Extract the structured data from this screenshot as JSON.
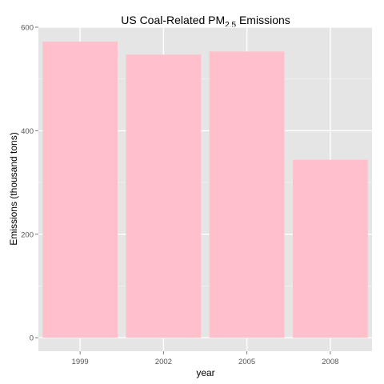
{
  "chart_data": {
    "type": "bar",
    "title": {
      "prefix": "US Coal-Related PM",
      "subscript": "2.5",
      "suffix": " Emissions"
    },
    "xlabel": "year",
    "ylabel": "Emissions (thousand tons)",
    "categories": [
      "1999",
      "2002",
      "2005",
      "2008"
    ],
    "values": [
      572,
      547,
      553,
      344
    ],
    "ylim": [
      -26,
      600
    ],
    "yticks": [
      0,
      200,
      400,
      600
    ],
    "grid": true,
    "legend": "none",
    "bar_color": "#FFC0CB",
    "panel_background": "#E5E5E5",
    "grid_color": "#FFFFFF"
  }
}
